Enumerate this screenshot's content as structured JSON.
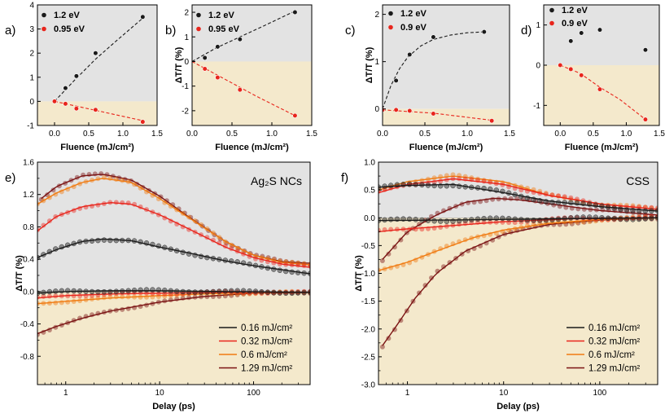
{
  "colors": {
    "gray_bg": "#e3e3e3",
    "tan_bg": "#f4e9cc",
    "black_marker": "#1a1a1a",
    "red_marker": "#e8251c",
    "dark_red": "#7a1212",
    "orange": "#f07b12"
  },
  "chart_data": [
    {
      "panel": "a)",
      "type": "scatter",
      "xlabel": "Fluence (mJ/cm²)",
      "ylabel": "",
      "xlim": [
        -0.25,
        1.5
      ],
      "ylim": [
        -1,
        4
      ],
      "xticks": [
        0.0,
        0.5,
        1.0,
        1.5
      ],
      "yticks": [
        -1,
        0,
        1,
        2,
        3,
        4
      ],
      "xticklabels": [
        "0.0",
        "0.5",
        "1.0",
        "1.5"
      ],
      "yticklabels": [
        "-1",
        "0",
        "1",
        "2",
        "3",
        "4"
      ],
      "shade_split_y": 0,
      "series": [
        {
          "name": "1.2 eV",
          "color": "#1a1a1a",
          "points": [
            [
              0.0,
              0.0
            ],
            [
              0.16,
              0.55
            ],
            [
              0.32,
              1.05
            ],
            [
              0.6,
              2.0
            ],
            [
              1.29,
              3.5
            ]
          ],
          "fit": [
            [
              0.0,
              0.0
            ],
            [
              0.3,
              0.9
            ],
            [
              0.6,
              1.75
            ],
            [
              0.9,
              2.5
            ],
            [
              1.29,
              3.45
            ]
          ]
        },
        {
          "name": "0.95 eV",
          "color": "#e8251c",
          "points": [
            [
              0.0,
              0.0
            ],
            [
              0.16,
              -0.1
            ],
            [
              0.32,
              -0.3
            ],
            [
              0.6,
              -0.35
            ],
            [
              1.29,
              -0.85
            ]
          ],
          "fit": [
            [
              0.0,
              0.0
            ],
            [
              1.29,
              -0.8
            ]
          ]
        }
      ]
    },
    {
      "panel": "b)",
      "type": "scatter",
      "xlabel": "Fluence (mJ/cm²)",
      "ylabel": "ΔT/T (%)",
      "xlim": [
        0.0,
        1.5
      ],
      "ylim": [
        -2.6,
        2.3
      ],
      "xticks": [
        0.0,
        0.5,
        1.0,
        1.5
      ],
      "yticks": [
        -2,
        -1,
        0,
        1,
        2
      ],
      "xticklabels": [
        "0.0",
        "0.5",
        "1.0",
        "1.5"
      ],
      "yticklabels": [
        "-2",
        "-1",
        "0",
        "1",
        "2"
      ],
      "shade_split_y": 0,
      "series": [
        {
          "name": "1.2 eV",
          "color": "#1a1a1a",
          "points": [
            [
              0.16,
              0.15
            ],
            [
              0.32,
              0.6
            ],
            [
              0.6,
              0.9
            ],
            [
              1.29,
              2.0
            ]
          ],
          "fit": [
            [
              0.0,
              0.0
            ],
            [
              0.3,
              0.55
            ],
            [
              0.6,
              1.0
            ],
            [
              0.9,
              1.45
            ],
            [
              1.29,
              2.05
            ]
          ]
        },
        {
          "name": "0.95 eV",
          "color": "#e8251c",
          "points": [
            [
              0.16,
              -0.3
            ],
            [
              0.32,
              -0.65
            ],
            [
              0.6,
              -1.15
            ],
            [
              1.29,
              -2.2
            ]
          ],
          "fit": [
            [
              0.0,
              0.0
            ],
            [
              0.4,
              -0.7
            ],
            [
              0.8,
              -1.4
            ],
            [
              1.29,
              -2.2
            ]
          ]
        }
      ]
    },
    {
      "panel": "c)",
      "type": "scatter",
      "xlabel": "Fluence (mJ/cm²)",
      "ylabel": "ΔT/T (%)",
      "xlim": [
        0.0,
        1.5
      ],
      "ylim": [
        -0.35,
        2.2
      ],
      "xticks": [
        0.0,
        0.5,
        1.0,
        1.5
      ],
      "yticks": [
        0,
        1,
        2
      ],
      "xticklabels": [
        "0.0",
        "0.5",
        "1.0",
        "1.5"
      ],
      "yticklabels": [
        "0",
        "1",
        "2"
      ],
      "shade_split_y": 0,
      "series": [
        {
          "name": "1.2 eV",
          "color": "#1a1a1a",
          "points": [
            [
              0.16,
              0.6
            ],
            [
              0.32,
              1.15
            ],
            [
              0.6,
              1.52
            ],
            [
              1.2,
              1.63
            ]
          ],
          "fit": [
            [
              0.0,
              0.0
            ],
            [
              0.1,
              0.5
            ],
            [
              0.2,
              0.85
            ],
            [
              0.3,
              1.1
            ],
            [
              0.45,
              1.33
            ],
            [
              0.6,
              1.47
            ],
            [
              0.8,
              1.56
            ],
            [
              1.0,
              1.61
            ],
            [
              1.2,
              1.63
            ]
          ]
        },
        {
          "name": "0.9 eV",
          "color": "#e8251c",
          "points": [
            [
              0.0,
              -0.02
            ],
            [
              0.16,
              -0.02
            ],
            [
              0.32,
              -0.04
            ],
            [
              0.6,
              -0.1
            ],
            [
              1.29,
              -0.25
            ]
          ],
          "fit": [
            [
              0.0,
              -0.02
            ],
            [
              0.6,
              -0.09
            ],
            [
              1.29,
              -0.24
            ]
          ]
        }
      ]
    },
    {
      "panel": "d)",
      "type": "scatter",
      "xlabel": "Fluence (mJ/cm²)",
      "ylabel": "",
      "xlim": [
        -0.25,
        1.5
      ],
      "ylim": [
        -1.5,
        1.5
      ],
      "xticks": [
        0.0,
        0.5,
        1.0,
        1.5
      ],
      "yticks": [
        -1,
        0,
        1
      ],
      "xticklabels": [
        "0.0",
        "0.5",
        "1.0",
        "1.5"
      ],
      "yticklabels": [
        "-1",
        "0",
        "1"
      ],
      "shade_split_y": 0,
      "series": [
        {
          "name": "1.2 eV",
          "color": "#1a1a1a",
          "points": [
            [
              0.16,
              0.6
            ],
            [
              0.32,
              0.8
            ],
            [
              0.6,
              0.88
            ],
            [
              1.29,
              0.38
            ]
          ],
          "fit": []
        },
        {
          "name": "0.9 eV",
          "color": "#e8251c",
          "points": [
            [
              0.0,
              0.0
            ],
            [
              0.16,
              -0.1
            ],
            [
              0.32,
              -0.25
            ],
            [
              0.6,
              -0.6
            ],
            [
              1.29,
              -1.35
            ]
          ],
          "fit": [
            [
              0.0,
              0.0
            ],
            [
              0.3,
              -0.2
            ],
            [
              0.6,
              -0.55
            ],
            [
              0.9,
              -0.85
            ],
            [
              1.29,
              -1.35
            ]
          ]
        }
      ]
    },
    {
      "panel": "e)",
      "type": "line",
      "annotation": "Ag₂S NCs",
      "xlabel": "Delay (ps)",
      "ylabel": "ΔT/T (%)",
      "xscale": "log",
      "xlim": [
        0.5,
        400
      ],
      "ylim": [
        -1.15,
        1.6
      ],
      "xticks": [
        1,
        10,
        100
      ],
      "yticks": [
        -0.8,
        -0.4,
        0.0,
        0.4,
        0.8,
        1.2,
        1.6
      ],
      "xticklabels": [
        "1",
        "10",
        "100"
      ],
      "yticklabels": [
        "-0.8",
        "-0.4",
        "0.0",
        "0.4",
        "0.8",
        "1.2",
        "1.6"
      ],
      "shade_split_y": 0,
      "legend_position": "bottom-right",
      "series": [
        {
          "name": "0.16 mJ/cm²",
          "color": "#1a1a1a",
          "pos": [
            [
              0.5,
              0.42
            ],
            [
              0.8,
              0.52
            ],
            [
              1.5,
              0.62
            ],
            [
              2.5,
              0.65
            ],
            [
              5,
              0.63
            ],
            [
              10,
              0.55
            ],
            [
              20,
              0.48
            ],
            [
              50,
              0.38
            ],
            [
              100,
              0.32
            ],
            [
              200,
              0.27
            ],
            [
              400,
              0.22
            ]
          ],
          "neg": [
            [
              0.5,
              -0.02
            ],
            [
              1,
              0.0
            ],
            [
              3,
              0.01
            ],
            [
              10,
              0.01
            ],
            [
              50,
              0.0
            ],
            [
              400,
              -0.01
            ]
          ]
        },
        {
          "name": "0.32 mJ/cm²",
          "color": "#e8251c",
          "pos": [
            [
              0.5,
              0.75
            ],
            [
              0.8,
              0.93
            ],
            [
              1.5,
              1.05
            ],
            [
              3,
              1.1
            ],
            [
              5,
              1.08
            ],
            [
              10,
              0.95
            ],
            [
              20,
              0.78
            ],
            [
              50,
              0.55
            ],
            [
              100,
              0.42
            ],
            [
              200,
              0.34
            ],
            [
              400,
              0.3
            ]
          ],
          "neg": [
            [
              0.5,
              -0.08
            ],
            [
              1,
              -0.05
            ],
            [
              3,
              -0.03
            ],
            [
              10,
              -0.02
            ],
            [
              50,
              -0.01
            ],
            [
              400,
              -0.01
            ]
          ]
        },
        {
          "name": "0.6 mJ/cm²",
          "color": "#f07b12",
          "pos": [
            [
              0.5,
              1.08
            ],
            [
              0.8,
              1.22
            ],
            [
              1.5,
              1.35
            ],
            [
              2.5,
              1.4
            ],
            [
              5,
              1.35
            ],
            [
              10,
              1.15
            ],
            [
              20,
              0.92
            ],
            [
              50,
              0.62
            ],
            [
              100,
              0.45
            ],
            [
              200,
              0.36
            ],
            [
              400,
              0.33
            ]
          ],
          "neg": [
            [
              0.5,
              -0.15
            ],
            [
              1,
              -0.12
            ],
            [
              3,
              -0.08
            ],
            [
              10,
              -0.05
            ],
            [
              50,
              -0.02
            ],
            [
              400,
              -0.01
            ]
          ]
        },
        {
          "name": "1.29 mJ/cm²",
          "color": "#7a1212",
          "pos": [
            [
              0.55,
              1.15
            ],
            [
              0.8,
              1.3
            ],
            [
              1.5,
              1.43
            ],
            [
              2.5,
              1.45
            ],
            [
              5,
              1.38
            ],
            [
              10,
              1.18
            ],
            [
              20,
              0.93
            ],
            [
              50,
              0.62
            ],
            [
              100,
              0.45
            ],
            [
              200,
              0.37
            ],
            [
              400,
              0.35
            ]
          ],
          "neg": [
            [
              0.5,
              -0.52
            ],
            [
              0.8,
              -0.43
            ],
            [
              1.5,
              -0.33
            ],
            [
              3,
              -0.24
            ],
            [
              10,
              -0.13
            ],
            [
              30,
              -0.06
            ],
            [
              100,
              -0.02
            ],
            [
              400,
              -0.01
            ]
          ]
        }
      ]
    },
    {
      "panel": "f)",
      "type": "line",
      "annotation": "CSS",
      "xlabel": "Delay (ps)",
      "ylabel": "ΔT/T (%)",
      "xscale": "log",
      "xlim": [
        0.5,
        400
      ],
      "ylim": [
        -3.0,
        1.0
      ],
      "xticks": [
        1,
        10,
        100
      ],
      "yticks": [
        -3.0,
        -2.5,
        -2.0,
        -1.5,
        -1.0,
        -0.5,
        0.0,
        0.5,
        1.0
      ],
      "xticklabels": [
        "1",
        "10",
        "100"
      ],
      "yticklabels": [
        "-3.0",
        "-2.5",
        "-2.0",
        "-1.5",
        "-1.0",
        "-0.5",
        "0.0",
        "0.5",
        "1.0"
      ],
      "shade_split_y": 0,
      "legend_position": "bottom-right",
      "series": [
        {
          "name": "0.16 mJ/cm²",
          "color": "#1a1a1a",
          "pos": [
            [
              0.5,
              0.55
            ],
            [
              1,
              0.58
            ],
            [
              3,
              0.6
            ],
            [
              10,
              0.45
            ],
            [
              30,
              0.3
            ],
            [
              100,
              0.2
            ],
            [
              400,
              0.12
            ]
          ],
          "neg": [
            [
              0.5,
              -0.05
            ],
            [
              3,
              -0.04
            ],
            [
              30,
              -0.02
            ],
            [
              400,
              0.0
            ]
          ]
        },
        {
          "name": "0.32 mJ/cm²",
          "color": "#e8251c",
          "pos": [
            [
              0.5,
              0.45
            ],
            [
              1,
              0.6
            ],
            [
              3,
              0.7
            ],
            [
              10,
              0.6
            ],
            [
              30,
              0.4
            ],
            [
              100,
              0.25
            ],
            [
              400,
              0.15
            ]
          ],
          "neg": [
            [
              0.5,
              -0.25
            ],
            [
              1,
              -0.2
            ],
            [
              3,
              -0.14
            ],
            [
              10,
              -0.07
            ],
            [
              50,
              -0.02
            ],
            [
              400,
              0.0
            ]
          ]
        },
        {
          "name": "0.6 mJ/cm²",
          "color": "#f07b12",
          "pos": [
            [
              0.5,
              0.5
            ],
            [
              1,
              0.65
            ],
            [
              3,
              0.75
            ],
            [
              10,
              0.65
            ],
            [
              30,
              0.4
            ],
            [
              100,
              0.25
            ],
            [
              400,
              0.15
            ]
          ],
          "neg": [
            [
              0.5,
              -0.95
            ],
            [
              1,
              -0.8
            ],
            [
              2,
              -0.6
            ],
            [
              5,
              -0.35
            ],
            [
              10,
              -0.22
            ],
            [
              30,
              -0.1
            ],
            [
              100,
              -0.03
            ],
            [
              400,
              0.0
            ]
          ]
        },
        {
          "name": "1.29 mJ/cm²",
          "color": "#7a1212",
          "pos": [
            [
              0.55,
              -0.75
            ],
            [
              1,
              -0.25
            ],
            [
              2,
              0.05
            ],
            [
              4,
              0.28
            ],
            [
              8,
              0.35
            ],
            [
              15,
              0.32
            ],
            [
              40,
              0.22
            ],
            [
              100,
              0.13
            ],
            [
              400,
              0.05
            ]
          ],
          "neg": [
            [
              0.55,
              -2.3
            ],
            [
              0.8,
              -1.9
            ],
            [
              1.2,
              -1.45
            ],
            [
              2,
              -1.0
            ],
            [
              4,
              -0.6
            ],
            [
              10,
              -0.3
            ],
            [
              30,
              -0.12
            ],
            [
              100,
              -0.04
            ],
            [
              400,
              0.0
            ]
          ]
        }
      ]
    }
  ]
}
